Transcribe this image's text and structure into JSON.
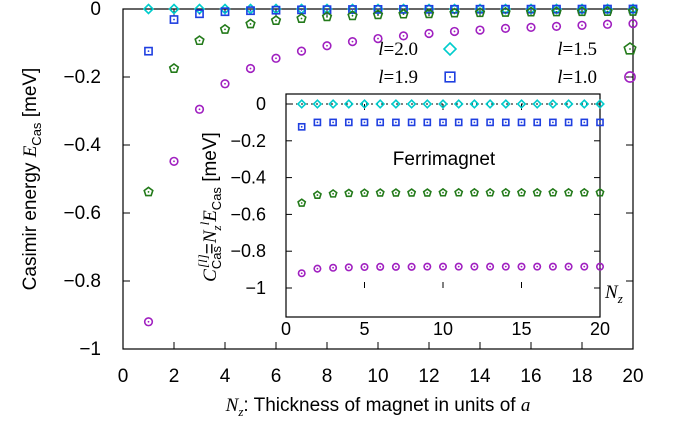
{
  "chart_data": [
    {
      "type": "scatter",
      "xlabel_parts": {
        "var": "N",
        "sub": "z",
        "rest": ": Thickness of magnet in units of ",
        "unit": "a"
      },
      "ylabel_parts": {
        "pre": "Casimir energy ",
        "var": "E",
        "sub": "Cas",
        "post": " [meV]"
      },
      "xlim": [
        0,
        20
      ],
      "ylim": [
        -1,
        0
      ],
      "xticks": [
        0,
        2,
        4,
        6,
        8,
        10,
        12,
        14,
        16,
        18,
        20
      ],
      "xtick_labels": [
        "0",
        "2",
        "4",
        "6",
        "8",
        "10",
        "12",
        "14",
        "16",
        "18",
        "20"
      ],
      "yticks": [
        0,
        -0.2,
        -0.4,
        -0.6,
        -0.8,
        -1
      ],
      "ytick_labels": [
        "0",
        "−0.2",
        "−0.4",
        "−0.6",
        "−0.8",
        "−1"
      ],
      "reference_line": 0,
      "x": [
        1,
        2,
        3,
        4,
        5,
        6,
        7,
        8,
        9,
        10,
        11,
        12,
        13,
        14,
        15,
        16,
        17,
        18,
        19,
        20
      ],
      "series": [
        {
          "name": "l=2.0",
          "prefix": "l",
          "value": "=2.0",
          "marker": "diamond",
          "color": "#00cccc",
          "values": [
            0,
            0,
            0,
            0,
            0,
            0,
            0,
            0,
            0,
            0,
            0,
            0,
            0,
            0,
            0,
            0,
            0,
            0,
            0,
            0
          ]
        },
        {
          "name": "l=1.9",
          "prefix": "l",
          "value": "=1.9",
          "marker": "square",
          "color": "#1f3fe0",
          "values": [
            -0.124,
            -0.031,
            -0.014,
            -0.008,
            -0.005,
            -0.0035,
            -0.0025,
            -0.002,
            -0.0015,
            -0.0012,
            -0.001,
            -0.0009,
            -0.0008,
            -0.0007,
            -0.0006,
            -0.0005,
            -0.0004,
            -0.0003,
            -0.0002,
            0
          ]
        },
        {
          "name": "l=1.5",
          "prefix": "l",
          "value": "=1.5",
          "marker": "pentagon",
          "color": "#237a1a",
          "values": [
            -0.538,
            -0.175,
            -0.093,
            -0.06,
            -0.044,
            -0.034,
            -0.028,
            -0.023,
            -0.02,
            -0.017,
            -0.015,
            -0.014,
            -0.012,
            -0.011,
            -0.01,
            -0.009,
            -0.0085,
            -0.008,
            -0.0075,
            -0.007
          ]
        },
        {
          "name": "l=1.0",
          "prefix": "l",
          "value": "=1.0",
          "marker": "circle",
          "color": "#a020c0",
          "values": [
            -0.92,
            -0.448,
            -0.295,
            -0.22,
            -0.175,
            -0.145,
            -0.124,
            -0.108,
            -0.096,
            -0.087,
            -0.079,
            -0.072,
            -0.066,
            -0.062,
            -0.057,
            -0.054,
            -0.051,
            -0.048,
            -0.045,
            -0.043
          ]
        }
      ],
      "legend_placement": "top-right"
    },
    {
      "type": "scatter",
      "title": "Ferrimagnet",
      "xlabel_parts": {
        "var": "N",
        "sub": "z"
      },
      "ylabel_parts": {
        "C": "C",
        "Csub": "Cas",
        "Csup": "[l]",
        "eq": "=",
        "N": "N",
        "Nsub": "z",
        "l": "l",
        "E": "E",
        "Esub": "Cas",
        "post": " [meV]"
      },
      "xlim": [
        0,
        20
      ],
      "ylim": [
        -1,
        0
      ],
      "xticks": [
        0,
        5,
        10,
        15,
        20
      ],
      "xtick_labels": [
        "0",
        "5",
        "10",
        "15",
        "20"
      ],
      "yticks": [
        0,
        -0.2,
        -0.4,
        -0.6,
        -0.8,
        -1
      ],
      "ytick_labels": [
        "0",
        "−0.2",
        "−0.4",
        "−0.6",
        "−0.8",
        "−1"
      ],
      "reference_line": 0,
      "x": [
        1,
        2,
        3,
        4,
        5,
        6,
        7,
        8,
        9,
        10,
        11,
        12,
        13,
        14,
        15,
        16,
        17,
        18,
        19,
        20
      ],
      "series": [
        {
          "name": "l=2.0",
          "marker": "diamond",
          "color": "#00cccc",
          "values": [
            0,
            0,
            0,
            0,
            0,
            0,
            0,
            0,
            0,
            0,
            0,
            0,
            0,
            0,
            0,
            0,
            0,
            0,
            0,
            0
          ]
        },
        {
          "name": "l=1.9",
          "marker": "square",
          "color": "#1f3fe0",
          "values": [
            -0.124,
            -0.1,
            -0.1,
            -0.1,
            -0.1,
            -0.1,
            -0.1,
            -0.1,
            -0.1,
            -0.1,
            -0.1,
            -0.1,
            -0.1,
            -0.1,
            -0.1,
            -0.1,
            -0.1,
            -0.1,
            -0.1,
            -0.1
          ]
        },
        {
          "name": "l=1.5",
          "marker": "pentagon",
          "color": "#237a1a",
          "values": [
            -0.538,
            -0.495,
            -0.488,
            -0.485,
            -0.484,
            -0.483,
            -0.483,
            -0.483,
            -0.483,
            -0.482,
            -0.482,
            -0.482,
            -0.482,
            -0.482,
            -0.482,
            -0.482,
            -0.482,
            -0.482,
            -0.482,
            -0.482
          ]
        },
        {
          "name": "l=1.0",
          "marker": "circle",
          "color": "#a020c0",
          "values": [
            -0.92,
            -0.895,
            -0.89,
            -0.888,
            -0.886,
            -0.885,
            -0.885,
            -0.885,
            -0.884,
            -0.884,
            -0.884,
            -0.884,
            -0.884,
            -0.884,
            -0.884,
            -0.884,
            -0.884,
            -0.884,
            -0.884,
            -0.884
          ]
        }
      ]
    }
  ]
}
